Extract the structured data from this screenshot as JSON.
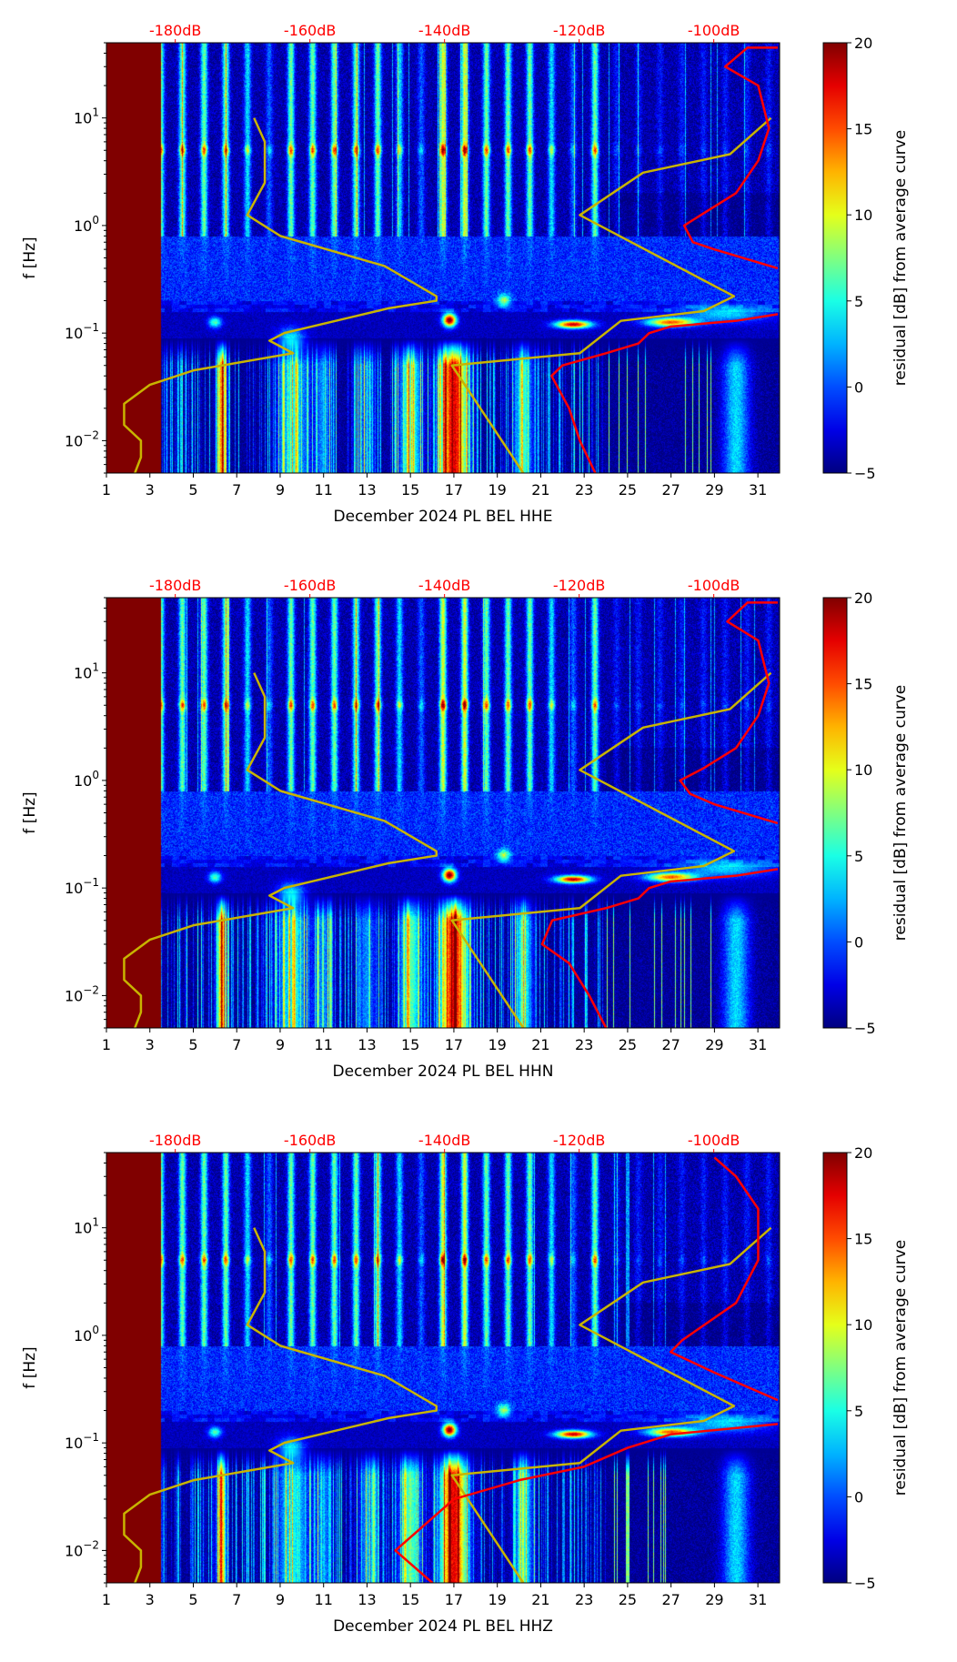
{
  "chart_data": [
    {
      "type": "heatmap",
      "title": "",
      "xlabel": "December 2024 PL BEL  HHE",
      "ylabel": "f [Hz]",
      "xlim": [
        1,
        32
      ],
      "ylim": [
        0.005,
        50
      ],
      "yscale": "log",
      "xticks": [
        "1",
        "3",
        "5",
        "7",
        "9",
        "11",
        "13",
        "15",
        "17",
        "19",
        "21",
        "23",
        "25",
        "27",
        "29",
        "31"
      ],
      "yticks": [
        "10^-2",
        "10^-1",
        "10^0",
        "10^1"
      ],
      "top_axis_ticks": [
        "-180dB",
        "-160dB",
        "-140dB",
        "-120dB",
        "-100dB"
      ],
      "top_axis_color": "#ff0000",
      "colorbar": {
        "label": "residual [dB] from average curve",
        "range": [
          -5,
          20
        ],
        "ticks": [
          "−5",
          "0",
          "5",
          "10",
          "15",
          "20"
        ],
        "colormap": "jet"
      },
      "variant": 0,
      "noise_model_curve_color": "#c8b400",
      "average_curve_color": "#ff0000",
      "low_noise_model_db": [
        [
          -168.3,
          10
        ],
        [
          -166.7,
          6
        ],
        [
          -166.7,
          2.5
        ],
        [
          -169.3,
          1.25
        ],
        [
          -164.4,
          0.8
        ],
        [
          -148.9,
          0.42
        ],
        [
          -141.2,
          0.22
        ],
        [
          -141.2,
          0.2
        ],
        [
          -148.3,
          0.17
        ],
        [
          -163.8,
          0.1
        ],
        [
          -166,
          0.085
        ],
        [
          -162.5,
          0.065
        ],
        [
          -177.3,
          0.045
        ],
        [
          -183.8,
          0.033
        ],
        [
          -187.6,
          0.022
        ],
        [
          -187.6,
          0.014
        ],
        [
          -185.1,
          0.01
        ],
        [
          -185.1,
          0.007
        ],
        [
          -186,
          0.005
        ]
      ],
      "high_noise_model_db": [
        [
          -128.3,
          0.005
        ],
        [
          -138.9,
          0.05
        ],
        [
          -119.9,
          0.065
        ],
        [
          -113.8,
          0.13
        ],
        [
          -101.5,
          0.16
        ],
        [
          -97,
          0.22
        ],
        [
          -119.9,
          1.25
        ],
        [
          -110.5,
          3.1
        ],
        [
          -97.6,
          4.6
        ],
        [
          -91.5,
          10
        ]
      ],
      "average_curve_db": [
        [
          -117.6,
          0.005
        ],
        [
          -119.9,
          0.01
        ],
        [
          -121.5,
          0.02
        ],
        [
          -124.1,
          0.04
        ],
        [
          -122.5,
          0.05
        ],
        [
          -116,
          0.065
        ],
        [
          -111.2,
          0.08
        ],
        [
          -109.6,
          0.1
        ],
        [
          -106.4,
          0.115
        ],
        [
          -96.7,
          0.13
        ],
        [
          -90.5,
          0.15
        ],
        [
          null,
          null
        ],
        [
          -90.5,
          0.4
        ],
        [
          -99.9,
          0.6
        ],
        [
          -103.1,
          0.7
        ],
        [
          -104.4,
          1
        ],
        [
          -101.5,
          1.3
        ],
        [
          -96.7,
          2
        ],
        [
          -93.4,
          4
        ],
        [
          -91.8,
          8
        ],
        [
          -93.4,
          20
        ],
        [
          -98.3,
          30
        ],
        [
          -95,
          45
        ],
        [
          -90.5,
          45
        ]
      ]
    },
    {
      "type": "heatmap",
      "title": "",
      "xlabel": "December 2024 PL BEL  HHN",
      "ylabel": "f [Hz]",
      "xlim": [
        1,
        32
      ],
      "ylim": [
        0.005,
        50
      ],
      "yscale": "log",
      "xticks": [
        "1",
        "3",
        "5",
        "7",
        "9",
        "11",
        "13",
        "15",
        "17",
        "19",
        "21",
        "23",
        "25",
        "27",
        "29",
        "31"
      ],
      "yticks": [
        "10^-2",
        "10^-1",
        "10^0",
        "10^1"
      ],
      "top_axis_ticks": [
        "-180dB",
        "-160dB",
        "-140dB",
        "-120dB",
        "-100dB"
      ],
      "top_axis_color": "#ff0000",
      "colorbar": {
        "label": "residual [dB] from average curve",
        "range": [
          -5,
          20
        ],
        "ticks": [
          "−5",
          "0",
          "5",
          "10",
          "15",
          "20"
        ],
        "colormap": "jet"
      },
      "variant": 1,
      "noise_model_curve_color": "#c8b400",
      "average_curve_color": "#ff0000",
      "low_noise_model_db": [
        [
          -168.3,
          10
        ],
        [
          -166.7,
          6
        ],
        [
          -166.7,
          2.5
        ],
        [
          -169.3,
          1.25
        ],
        [
          -164.4,
          0.8
        ],
        [
          -148.9,
          0.42
        ],
        [
          -141.2,
          0.22
        ],
        [
          -141.2,
          0.2
        ],
        [
          -148.3,
          0.17
        ],
        [
          -163.8,
          0.1
        ],
        [
          -166,
          0.085
        ],
        [
          -162.5,
          0.065
        ],
        [
          -177.3,
          0.045
        ],
        [
          -183.8,
          0.033
        ],
        [
          -187.6,
          0.022
        ],
        [
          -187.6,
          0.014
        ],
        [
          -185.1,
          0.01
        ],
        [
          -185.1,
          0.007
        ],
        [
          -186,
          0.005
        ]
      ],
      "high_noise_model_db": [
        [
          -128.3,
          0.005
        ],
        [
          -138.9,
          0.05
        ],
        [
          -119.9,
          0.065
        ],
        [
          -113.8,
          0.13
        ],
        [
          -101.5,
          0.16
        ],
        [
          -97,
          0.22
        ],
        [
          -119.9,
          1.25
        ],
        [
          -110.5,
          3.1
        ],
        [
          -97.6,
          4.6
        ],
        [
          -91.5,
          10
        ]
      ],
      "average_curve_db": [
        [
          -116,
          0.005
        ],
        [
          -118.5,
          0.01
        ],
        [
          -121.5,
          0.02
        ],
        [
          -125.5,
          0.03
        ],
        [
          -124,
          0.05
        ],
        [
          -116,
          0.065
        ],
        [
          -111.2,
          0.08
        ],
        [
          -109.6,
          0.1
        ],
        [
          -106.4,
          0.115
        ],
        [
          -96.7,
          0.13
        ],
        [
          -90.5,
          0.15
        ],
        [
          null,
          null
        ],
        [
          -90.5,
          0.4
        ],
        [
          -99.9,
          0.6
        ],
        [
          -103.5,
          0.75
        ],
        [
          -105,
          1
        ],
        [
          -101.5,
          1.3
        ],
        [
          -96.7,
          2
        ],
        [
          -93.4,
          4
        ],
        [
          -91.8,
          8
        ],
        [
          -93.4,
          20
        ],
        [
          -98,
          30
        ],
        [
          -95,
          45
        ],
        [
          -90.5,
          45
        ]
      ]
    },
    {
      "type": "heatmap",
      "title": "",
      "xlabel": "December 2024 PL BEL  HHZ",
      "ylabel": "f [Hz]",
      "xlim": [
        1,
        32
      ],
      "ylim": [
        0.005,
        50
      ],
      "yscale": "log",
      "xticks": [
        "1",
        "3",
        "5",
        "7",
        "9",
        "11",
        "13",
        "15",
        "17",
        "19",
        "21",
        "23",
        "25",
        "27",
        "29",
        "31"
      ],
      "yticks": [
        "10^-2",
        "10^-1",
        "10^0",
        "10^1"
      ],
      "top_axis_ticks": [
        "-180dB",
        "-160dB",
        "-140dB",
        "-120dB",
        "-100dB"
      ],
      "top_axis_color": "#ff0000",
      "colorbar": {
        "label": "residual [dB] from average curve",
        "range": [
          -5,
          20
        ],
        "ticks": [
          "−5",
          "0",
          "5",
          "10",
          "15",
          "20"
        ],
        "colormap": "jet"
      },
      "variant": 2,
      "noise_model_curve_color": "#c8b400",
      "average_curve_color": "#ff0000",
      "low_noise_model_db": [
        [
          -168.3,
          10
        ],
        [
          -166.7,
          6
        ],
        [
          -166.7,
          2.5
        ],
        [
          -169.3,
          1.25
        ],
        [
          -164.4,
          0.8
        ],
        [
          -148.9,
          0.42
        ],
        [
          -141.2,
          0.22
        ],
        [
          -141.2,
          0.2
        ],
        [
          -148.3,
          0.17
        ],
        [
          -163.8,
          0.1
        ],
        [
          -166,
          0.085
        ],
        [
          -162.5,
          0.065
        ],
        [
          -177.3,
          0.045
        ],
        [
          -183.8,
          0.033
        ],
        [
          -187.6,
          0.022
        ],
        [
          -187.6,
          0.014
        ],
        [
          -185.1,
          0.01
        ],
        [
          -185.1,
          0.007
        ],
        [
          -186,
          0.005
        ]
      ],
      "high_noise_model_db": [
        [
          -128.3,
          0.005
        ],
        [
          -138.9,
          0.05
        ],
        [
          -119.9,
          0.065
        ],
        [
          -113.8,
          0.13
        ],
        [
          -101.5,
          0.16
        ],
        [
          -97,
          0.22
        ],
        [
          -119.9,
          1.25
        ],
        [
          -110.5,
          3.1
        ],
        [
          -97.6,
          4.6
        ],
        [
          -91.5,
          10
        ]
      ],
      "average_curve_db": [
        [
          -141.8,
          0.005
        ],
        [
          -147.3,
          0.01
        ],
        [
          -138.6,
          0.03
        ],
        [
          -128.9,
          0.045
        ],
        [
          -119.3,
          0.06
        ],
        [
          -112.8,
          0.09
        ],
        [
          -106.4,
          0.12
        ],
        [
          -90.5,
          0.15
        ],
        [
          null,
          null
        ],
        [
          -90.5,
          0.25
        ],
        [
          -99.9,
          0.45
        ],
        [
          -106.4,
          0.7
        ],
        [
          -104.7,
          0.9
        ],
        [
          -96.7,
          2
        ],
        [
          -93.4,
          5
        ],
        [
          -93.4,
          15
        ],
        [
          -96.7,
          30
        ],
        [
          -99.9,
          45
        ]
      ]
    }
  ]
}
